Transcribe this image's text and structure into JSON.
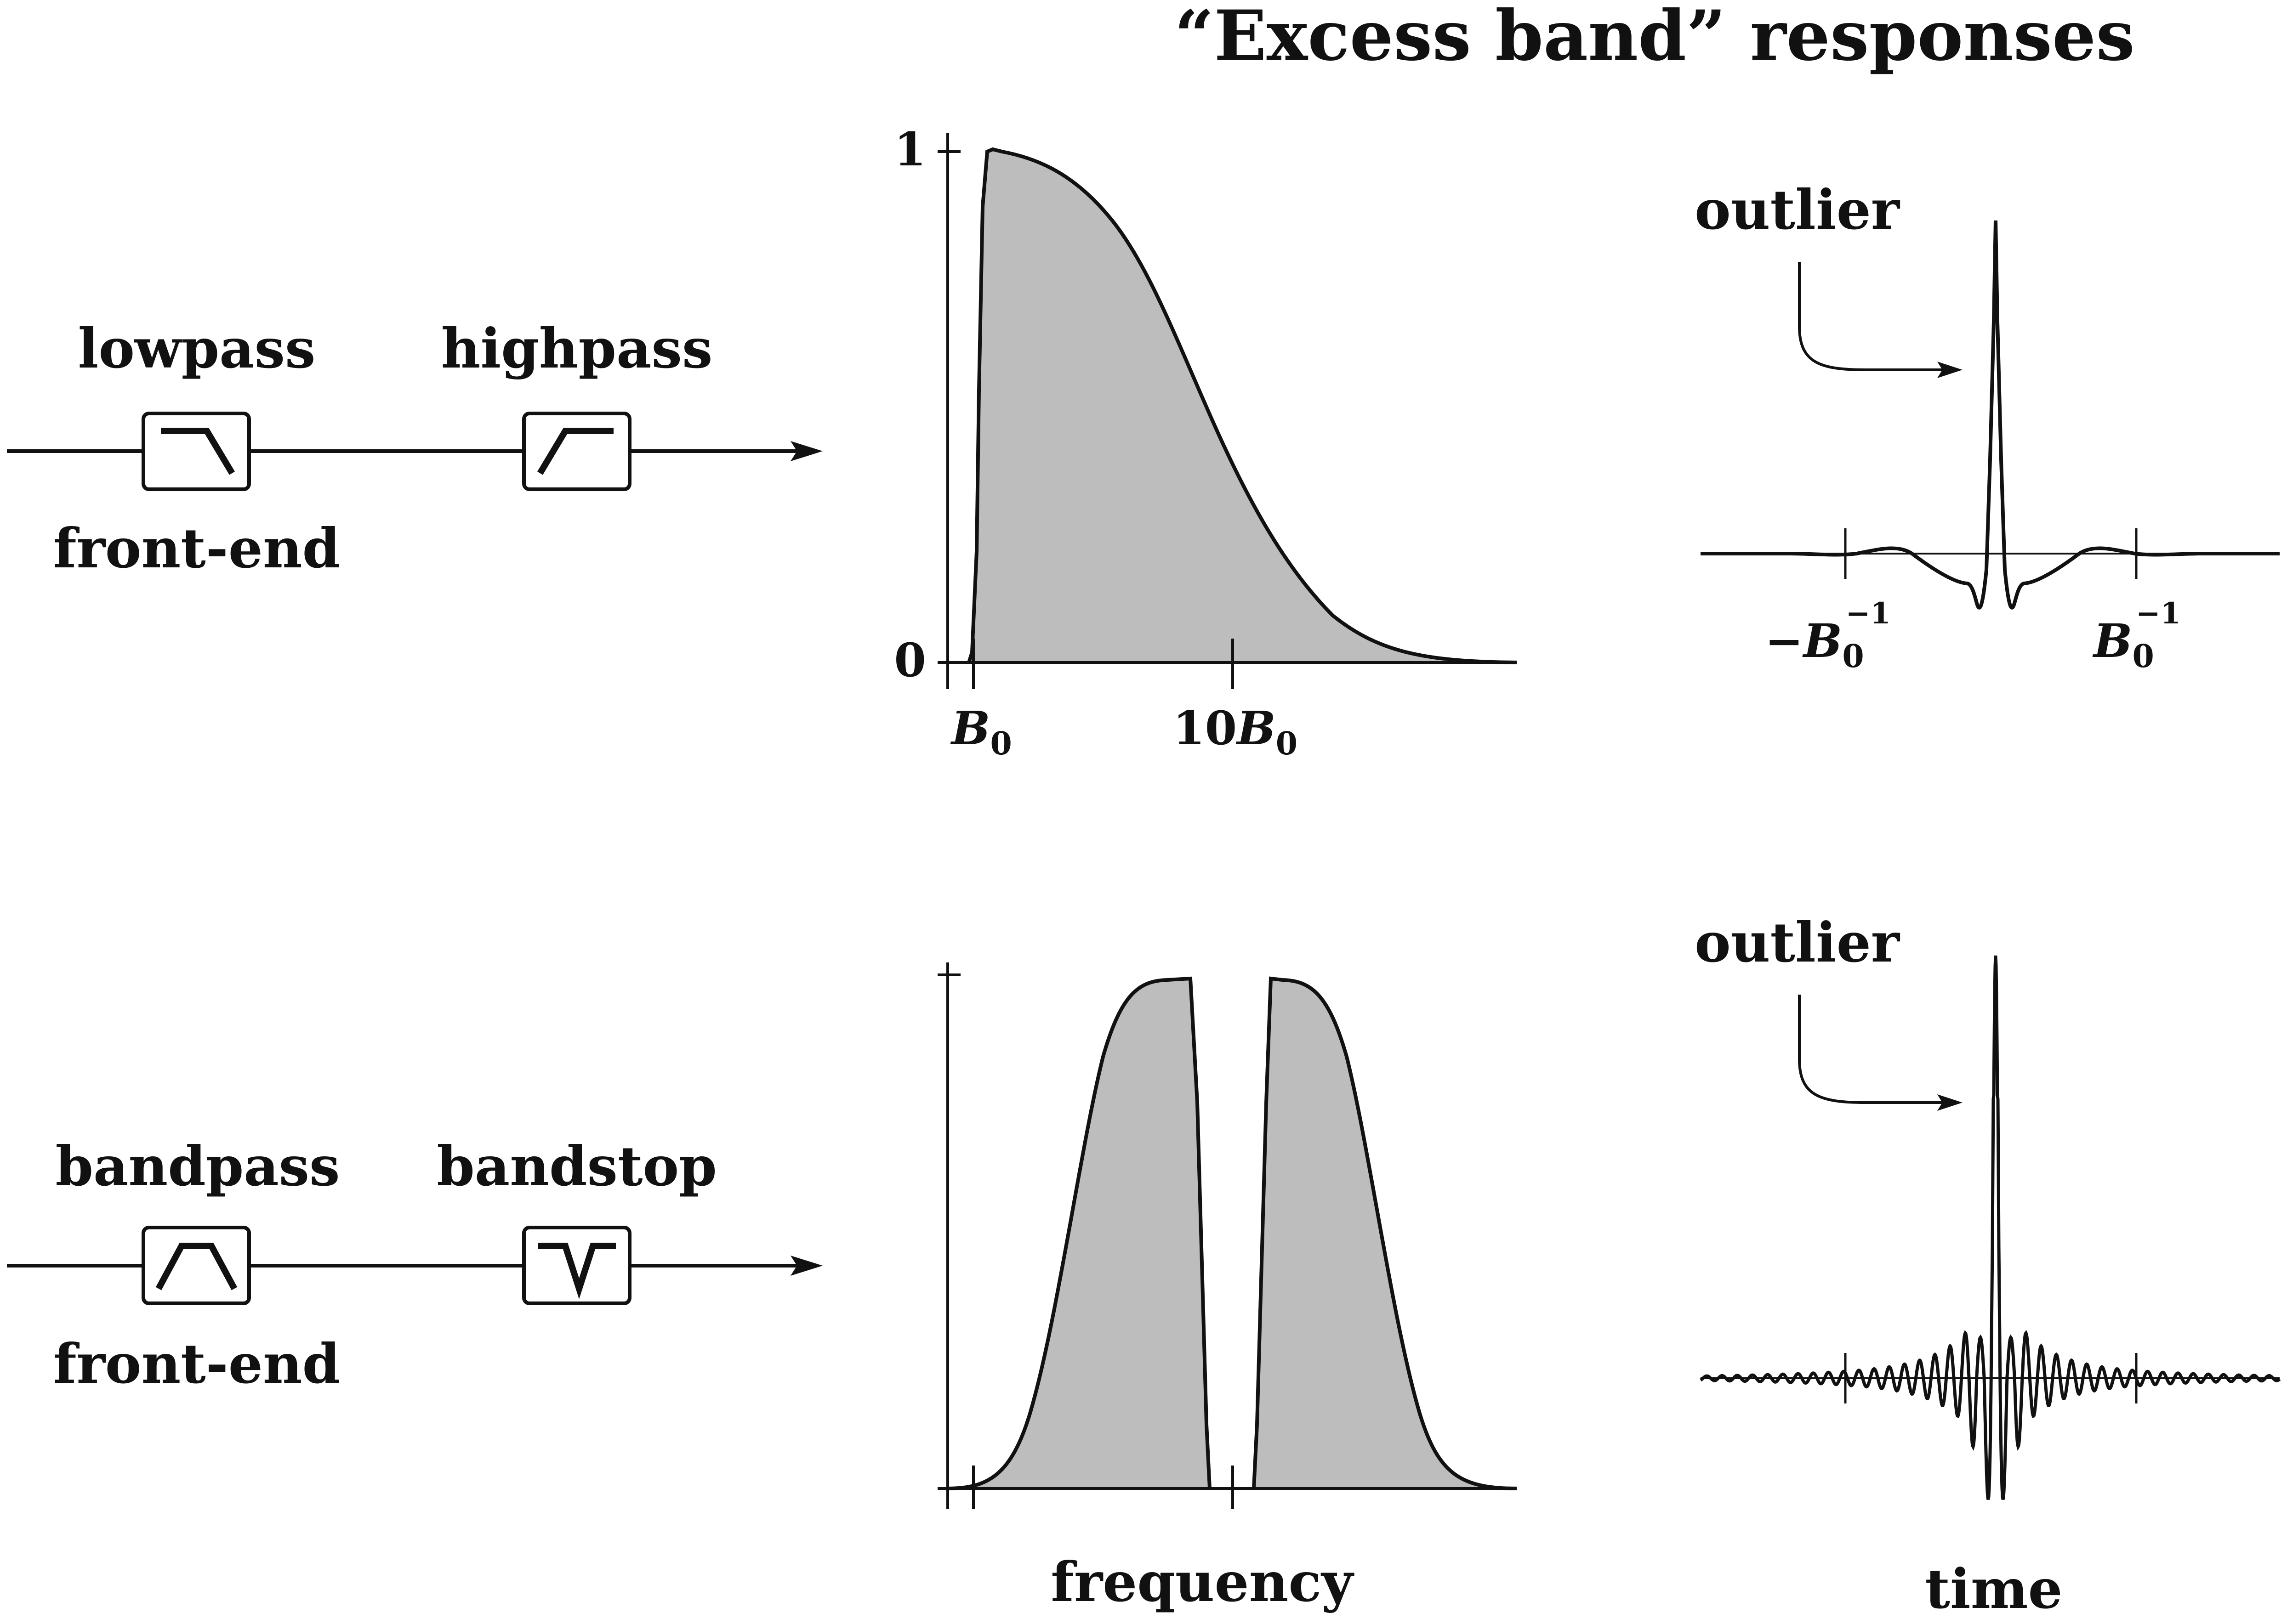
{
  "title": "“Excess band” responses",
  "colors": {
    "ink": "#111111",
    "fill": "#bdbdbd",
    "background": "#ffffff"
  },
  "rows": [
    {
      "chain": {
        "filter1_label": "lowpass",
        "filter1_icon": "lowpass-icon",
        "filter2_label": "highpass",
        "filter2_icon": "highpass-icon",
        "caption": "front-end"
      },
      "frequency": {
        "y_tick_top": "1",
        "y_tick_bottom": "0",
        "x_tick_1_sym": "B",
        "x_tick_1_sub": "0",
        "x_tick_2_coef": "10",
        "x_tick_2_sym": "B",
        "x_tick_2_sub": "0"
      },
      "time": {
        "annotation": "outlier",
        "tick_left_sign": "−",
        "tick_left_sym": "B",
        "tick_left_sub": "0",
        "tick_left_sup": "−1",
        "tick_right_sym": "B",
        "tick_right_sub": "0",
        "tick_right_sup": "−1"
      }
    },
    {
      "chain": {
        "filter1_label": "bandpass",
        "filter1_icon": "bandpass-icon",
        "filter2_label": "bandstop",
        "filter2_icon": "bandstop-icon",
        "caption": "front-end"
      },
      "time": {
        "annotation": "outlier"
      }
    }
  ],
  "axis_labels": {
    "frequency": "frequency",
    "time": "time"
  }
}
